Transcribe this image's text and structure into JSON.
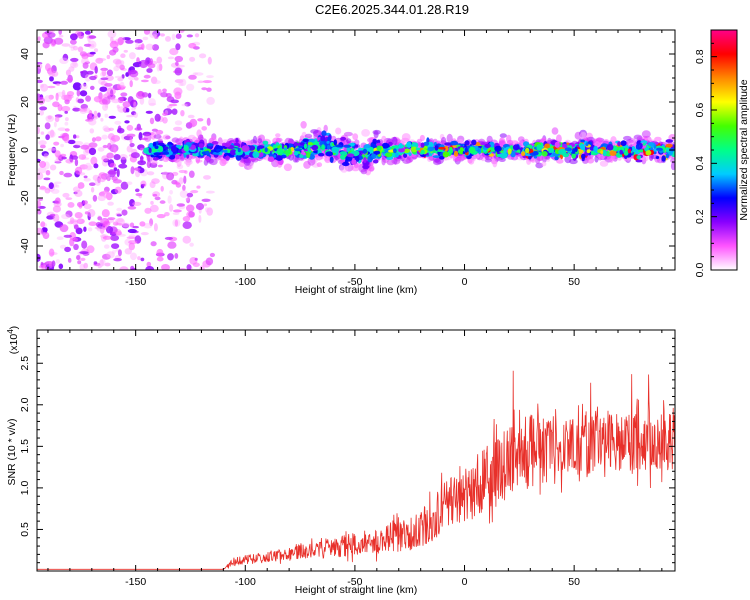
{
  "title": "C2E6.2025.344.01.28.R19",
  "chart_data": [
    {
      "type": "heatmap",
      "xlabel": "Height of straight line (km)",
      "ylabel": "Frequency (Hz)",
      "xlim": [
        -195,
        96
      ],
      "ylim": [
        -50,
        50
      ],
      "xticks": [
        "-150",
        "-100",
        "-50",
        "0",
        "50"
      ],
      "yticks": [
        "-40",
        "-20",
        "0",
        "20",
        "40"
      ],
      "colorbar": {
        "label": "Normalized spectral amplitude",
        "range": [
          0.0,
          0.9
        ],
        "ticks": [
          "0.0",
          "0.2",
          "0.4",
          "0.6",
          "0.8"
        ],
        "colors": [
          "#ffffff",
          "#ff55ff",
          "#8800ff",
          "#0000ff",
          "#00ccff",
          "#00ff88",
          "#44ff00",
          "#ffff00",
          "#ff8800",
          "#ff0000",
          "#ff0088"
        ]
      },
      "regions": [
        {
          "name": "scattered noise",
          "x_range": [
            -195,
            -115
          ],
          "freq_range": [
            -50,
            50
          ],
          "amplitude": "0.0-0.2"
        },
        {
          "name": "signal band",
          "x_range": [
            -145,
            96
          ],
          "center_freq": 0,
          "half_width_hz": 5,
          "amplitude_peak": 0.85
        }
      ]
    },
    {
      "type": "line",
      "xlabel": "Height of straight line (km)",
      "ylabel": "SNR (10 * v/v)",
      "y_scale_label": "(x10",
      "y_scale_exp": "4",
      "xlim": [
        -195,
        96
      ],
      "ylim": [
        0,
        2.9
      ],
      "xticks": [
        "-150",
        "-100",
        "-50",
        "0",
        "50"
      ],
      "yticks": [
        "0.5",
        "1.0",
        "1.5",
        "2.0",
        "2.5"
      ],
      "series": [
        {
          "name": "SNR",
          "color": "#e8302a",
          "profile_x": [
            -195,
            -110,
            -105,
            -95,
            -80,
            -60,
            -45,
            -30,
            -20,
            -10,
            0,
            10,
            20,
            30,
            40,
            50,
            60,
            70,
            80,
            96
          ],
          "profile_mean": [
            0.02,
            0.02,
            0.12,
            0.15,
            0.2,
            0.28,
            0.35,
            0.42,
            0.5,
            0.75,
            0.95,
            1.1,
            1.3,
            1.45,
            1.5,
            1.5,
            1.55,
            1.55,
            1.55,
            1.55
          ],
          "profile_spread": [
            0.0,
            0.0,
            0.05,
            0.06,
            0.08,
            0.12,
            0.15,
            0.2,
            0.25,
            0.3,
            0.35,
            0.4,
            0.45,
            0.45,
            0.4,
            0.35,
            0.35,
            0.35,
            0.35,
            0.35
          ]
        }
      ]
    }
  ]
}
